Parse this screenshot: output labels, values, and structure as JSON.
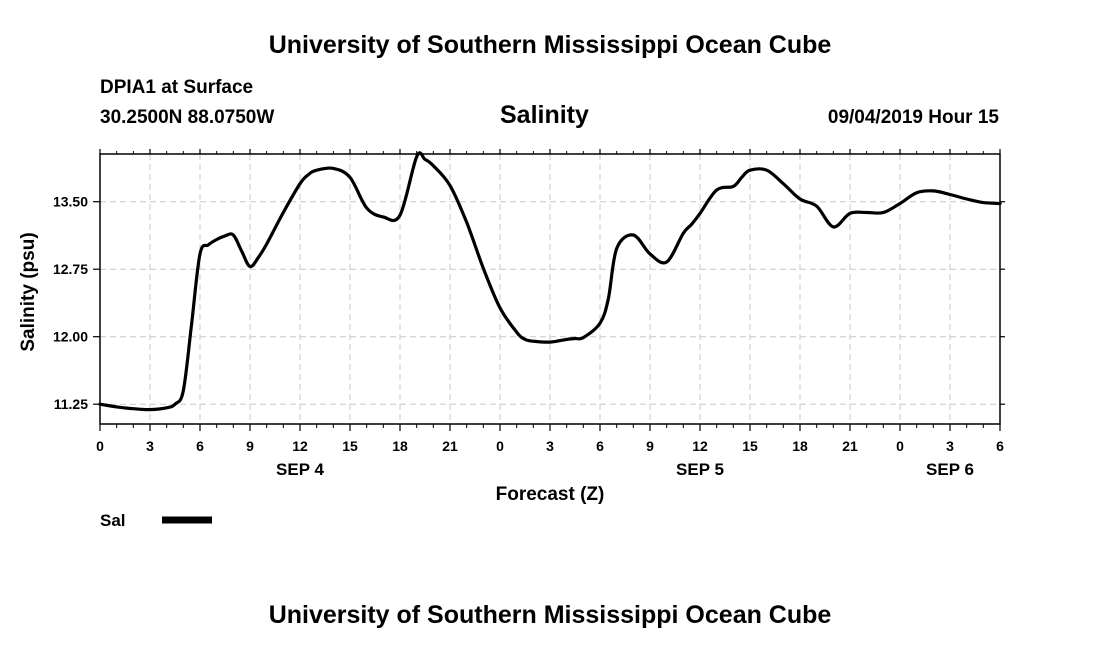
{
  "header": {
    "title_top": "University of Southern Mississippi Ocean Cube",
    "station": "DPIA1 at Surface",
    "location": "30.2500N 88.0750W",
    "chart_title": "Salinity",
    "timestamp": "09/04/2019 Hour 15",
    "title_bottom": "University of Southern Mississippi Ocean Cube"
  },
  "legend": {
    "label": "Sal",
    "color": "#000000"
  },
  "chart_data": {
    "type": "line",
    "title": "Salinity",
    "xlabel": "Forecast (Z)",
    "ylabel": "Salinity (psu)",
    "xlim": [
      0,
      54
    ],
    "ylim": [
      11.03,
      14.03
    ],
    "grid": true,
    "legend_placement": "bottom-left",
    "x_ticks": [
      {
        "x": 0,
        "label": "0"
      },
      {
        "x": 3,
        "label": "3"
      },
      {
        "x": 6,
        "label": "6"
      },
      {
        "x": 9,
        "label": "9"
      },
      {
        "x": 12,
        "label": "12"
      },
      {
        "x": 15,
        "label": "15"
      },
      {
        "x": 18,
        "label": "18"
      },
      {
        "x": 21,
        "label": "21"
      },
      {
        "x": 24,
        "label": "0"
      },
      {
        "x": 27,
        "label": "3"
      },
      {
        "x": 30,
        "label": "6"
      },
      {
        "x": 33,
        "label": "9"
      },
      {
        "x": 36,
        "label": "12"
      },
      {
        "x": 39,
        "label": "15"
      },
      {
        "x": 42,
        "label": "18"
      },
      {
        "x": 45,
        "label": "21"
      },
      {
        "x": 48,
        "label": "0"
      },
      {
        "x": 51,
        "label": "3"
      },
      {
        "x": 54,
        "label": "6"
      }
    ],
    "day_labels": [
      {
        "x": 12,
        "label": "SEP 4"
      },
      {
        "x": 36,
        "label": "SEP 5"
      },
      {
        "x": 51,
        "label": "SEP 6"
      }
    ],
    "y_ticks": [
      {
        "y": 11.25,
        "label": "11.25"
      },
      {
        "y": 12.0,
        "label": "12.00"
      },
      {
        "y": 12.75,
        "label": "12.75"
      },
      {
        "y": 13.5,
        "label": "13.50"
      }
    ],
    "series": [
      {
        "name": "Sal",
        "color": "#000000",
        "x": [
          0,
          1,
          2,
          3,
          4,
          4.5,
          5,
          5.5,
          6,
          6.5,
          7,
          7.5,
          8,
          8.5,
          9,
          9.5,
          10,
          11,
          12,
          12.5,
          13,
          14,
          15,
          16,
          17,
          18,
          19,
          19.5,
          20,
          21,
          22,
          23,
          24,
          25,
          25.5,
          26,
          27,
          28,
          28.5,
          29,
          30,
          30.5,
          31,
          32,
          33,
          34,
          35,
          35.5,
          36,
          37,
          38,
          38.5,
          39,
          40,
          41,
          42,
          43,
          44,
          45,
          46,
          47,
          48,
          49,
          50,
          51,
          52,
          53,
          54
        ],
        "values": [
          11.25,
          11.22,
          11.2,
          11.19,
          11.21,
          11.25,
          11.4,
          12.15,
          12.92,
          13.02,
          13.08,
          13.12,
          13.13,
          12.95,
          12.78,
          12.88,
          13.03,
          13.38,
          13.7,
          13.8,
          13.85,
          13.87,
          13.77,
          13.43,
          13.33,
          13.35,
          14.0,
          13.97,
          13.9,
          13.68,
          13.27,
          12.76,
          12.32,
          12.05,
          11.97,
          11.95,
          11.94,
          11.97,
          11.98,
          11.99,
          12.15,
          12.42,
          12.98,
          13.13,
          12.92,
          12.83,
          13.15,
          13.25,
          13.37,
          13.63,
          13.67,
          13.77,
          13.85,
          13.85,
          13.7,
          13.53,
          13.45,
          13.22,
          13.37,
          13.38,
          13.38,
          13.48,
          13.6,
          13.62,
          13.58,
          13.53,
          13.49,
          13.48
        ]
      }
    ]
  }
}
